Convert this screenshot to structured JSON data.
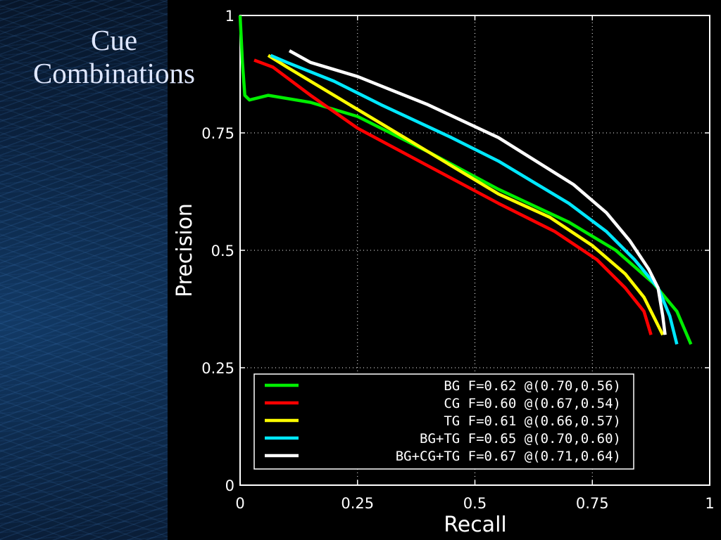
{
  "slide": {
    "title_line1": "Cue",
    "title_line2": "Combinations"
  },
  "chart_data": {
    "type": "line",
    "title": "",
    "xlabel": "Recall",
    "ylabel": "Precision",
    "xlim": [
      0,
      1
    ],
    "ylim": [
      0,
      1
    ],
    "grid": true,
    "legend_position": "bottom-left",
    "x_ticks": [
      "0",
      "0.25",
      "0.5",
      "0.75",
      "1"
    ],
    "y_ticks": [
      "0",
      "0.25",
      "0.5",
      "0.75",
      "1"
    ],
    "series": [
      {
        "name": "BG",
        "color": "#00ee00",
        "legend": "BG F=0.62 @(0.70,0.56)",
        "points": [
          [
            0.0,
            1.0
          ],
          [
            0.005,
            0.9
          ],
          [
            0.01,
            0.83
          ],
          [
            0.02,
            0.82
          ],
          [
            0.06,
            0.83
          ],
          [
            0.15,
            0.815
          ],
          [
            0.25,
            0.785
          ],
          [
            0.4,
            0.71
          ],
          [
            0.55,
            0.63
          ],
          [
            0.7,
            0.56
          ],
          [
            0.8,
            0.5
          ],
          [
            0.88,
            0.43
          ],
          [
            0.93,
            0.37
          ],
          [
            0.96,
            0.3
          ]
        ]
      },
      {
        "name": "CG",
        "color": "#ff0000",
        "legend": "CG F=0.60 @(0.67,0.54)",
        "points": [
          [
            0.03,
            0.905
          ],
          [
            0.07,
            0.89
          ],
          [
            0.15,
            0.83
          ],
          [
            0.25,
            0.76
          ],
          [
            0.4,
            0.68
          ],
          [
            0.55,
            0.6
          ],
          [
            0.67,
            0.54
          ],
          [
            0.76,
            0.48
          ],
          [
            0.82,
            0.42
          ],
          [
            0.86,
            0.37
          ],
          [
            0.875,
            0.32
          ]
        ]
      },
      {
        "name": "TG",
        "color": "#ffff00",
        "legend": "TG F=0.61 @(0.66,0.57)",
        "points": [
          [
            0.06,
            0.915
          ],
          [
            0.1,
            0.89
          ],
          [
            0.2,
            0.83
          ],
          [
            0.3,
            0.77
          ],
          [
            0.45,
            0.68
          ],
          [
            0.55,
            0.62
          ],
          [
            0.66,
            0.57
          ],
          [
            0.75,
            0.51
          ],
          [
            0.82,
            0.45
          ],
          [
            0.86,
            0.4
          ],
          [
            0.88,
            0.36
          ],
          [
            0.9,
            0.32
          ]
        ]
      },
      {
        "name": "BG+TG",
        "color": "#00e8ff",
        "legend": "BG+TG F=0.65 @(0.70,0.60)",
        "points": [
          [
            0.065,
            0.915
          ],
          [
            0.1,
            0.9
          ],
          [
            0.2,
            0.86
          ],
          [
            0.3,
            0.81
          ],
          [
            0.45,
            0.74
          ],
          [
            0.55,
            0.69
          ],
          [
            0.7,
            0.6
          ],
          [
            0.78,
            0.54
          ],
          [
            0.84,
            0.48
          ],
          [
            0.89,
            0.42
          ],
          [
            0.915,
            0.36
          ],
          [
            0.93,
            0.3
          ]
        ]
      },
      {
        "name": "BG+CG+TG",
        "color": "#ffffff",
        "legend": "BG+CG+TG F=0.67 @(0.71,0.64)",
        "points": [
          [
            0.105,
            0.925
          ],
          [
            0.15,
            0.9
          ],
          [
            0.25,
            0.87
          ],
          [
            0.4,
            0.81
          ],
          [
            0.55,
            0.74
          ],
          [
            0.71,
            0.64
          ],
          [
            0.78,
            0.58
          ],
          [
            0.83,
            0.52
          ],
          [
            0.87,
            0.46
          ],
          [
            0.89,
            0.42
          ],
          [
            0.9,
            0.36
          ],
          [
            0.905,
            0.32
          ]
        ]
      }
    ]
  }
}
